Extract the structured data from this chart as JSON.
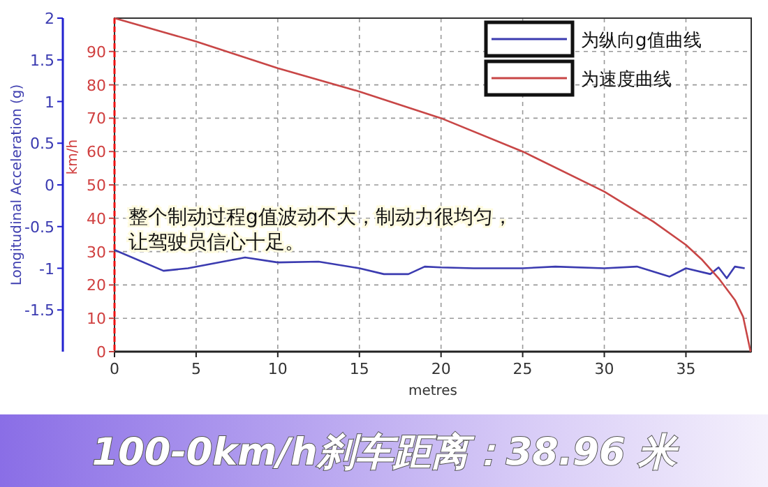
{
  "chart_data": {
    "type": "line",
    "title": "100-0km/h刹车距离：38.96 米",
    "xlabel": "metres",
    "ylabel": "km/h",
    "y2label": "Longitudinal Acceleration (g)",
    "xlim": [
      0,
      39
    ],
    "xticks": [
      0,
      5,
      10,
      15,
      20,
      25,
      30,
      35
    ],
    "ylim": [
      0,
      100
    ],
    "yticks": [
      0,
      10,
      20,
      30,
      40,
      50,
      60,
      70,
      80,
      90
    ],
    "y2lim": [
      -2,
      2
    ],
    "y2ticks": [
      -1.5,
      -1,
      -0.5,
      0,
      0.5,
      1,
      1.5,
      2
    ],
    "grid": true,
    "legend": "top right",
    "line_style": "solid",
    "marker": "none",
    "annotations": [
      "整个制动过程g值波动不大，制动力很均匀，",
      "让驾驶员信心十足。"
    ],
    "series": [
      {
        "name": "为纵向g值曲线",
        "color": "#3b3bb0",
        "axis": "y2",
        "x": [
          0,
          3,
          4.5,
          8,
          10,
          12.5,
          15,
          16.5,
          18,
          19,
          20,
          22,
          25,
          27,
          30,
          32,
          34,
          35,
          36.5,
          37,
          37.5,
          38,
          38.6
        ],
        "values": [
          -0.78,
          -1.03,
          -1,
          -0.87,
          -0.93,
          -0.92,
          -1,
          -1.07,
          -1.07,
          -0.98,
          -0.99,
          -1,
          -1,
          -0.98,
          -1,
          -0.98,
          -1.1,
          -1,
          -1.07,
          -0.99,
          -1.12,
          -0.98,
          -1
        ]
      },
      {
        "name": "为速度曲线",
        "color": "#c84646",
        "axis": "y",
        "x": [
          0,
          5,
          10,
          15,
          20,
          25,
          30,
          33,
          35,
          36,
          37,
          38,
          38.5,
          38.96
        ],
        "values": [
          100,
          93,
          85,
          78,
          70,
          60,
          48,
          39,
          32,
          27.5,
          22,
          15.5,
          10.5,
          0
        ]
      }
    ]
  }
}
